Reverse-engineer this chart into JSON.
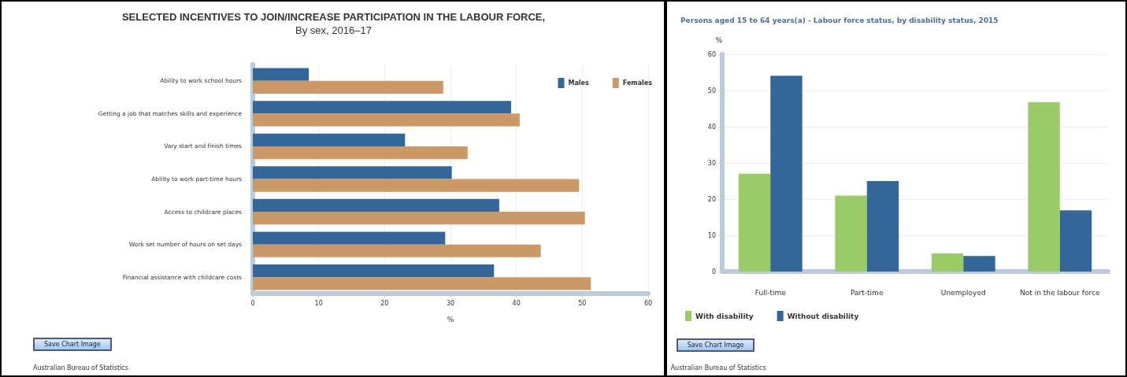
{
  "chart_data": [
    {
      "type": "bar",
      "orientation": "horizontal",
      "title": "SELECTED INCENTIVES TO JOIN/INCREASE PARTICIPATION IN THE LABOUR FORCE,",
      "subtitle": "By sex, 2016–17",
      "xlabel": "%",
      "categories": [
        "Ability to work school hours",
        "Getting a job that matches skills and experience",
        "Vary start and finish times",
        "Ability to work part-time hours",
        "Access to childcare places",
        "Work set number of hours on set days",
        "Financial assistance with childcare costs"
      ],
      "series": [
        {
          "name": "Males",
          "color": "#336699",
          "values": [
            8.5,
            39.2,
            23.1,
            30.2,
            37.4,
            29.2,
            36.6
          ]
        },
        {
          "name": "Females",
          "color": "#cc9966",
          "values": [
            28.9,
            40.5,
            32.6,
            49.5,
            50.4,
            43.7,
            51.3
          ]
        }
      ],
      "xlim": [
        0,
        60
      ],
      "xticks": [
        0,
        10,
        20,
        30,
        40,
        50,
        60
      ],
      "grid": "x",
      "legend": "top right",
      "annotations": [
        "Save Chart Image",
        "Australian Bureau of Statistics"
      ]
    },
    {
      "type": "bar",
      "title": "Persons aged 15 to 64 years(a) - Labour force status, by disability status, 2015",
      "ylabel": "%",
      "categories": [
        "Full-time",
        "Part-time",
        "Unemployed",
        "Not in the labour force"
      ],
      "series": [
        {
          "name": "With disability",
          "color": "#99cc66",
          "values": [
            27.0,
            21.0,
            5.0,
            46.8
          ]
        },
        {
          "name": "Without disability",
          "color": "#336699",
          "values": [
            54.1,
            25.0,
            4.3,
            16.9
          ]
        }
      ],
      "ylim": [
        0,
        60
      ],
      "yticks": [
        0,
        10,
        20,
        30,
        40,
        50,
        60
      ],
      "grid": "y",
      "legend": "bottom",
      "annotations": [
        "Save Chart Image",
        "Australian Bureau of Statistics"
      ]
    }
  ]
}
